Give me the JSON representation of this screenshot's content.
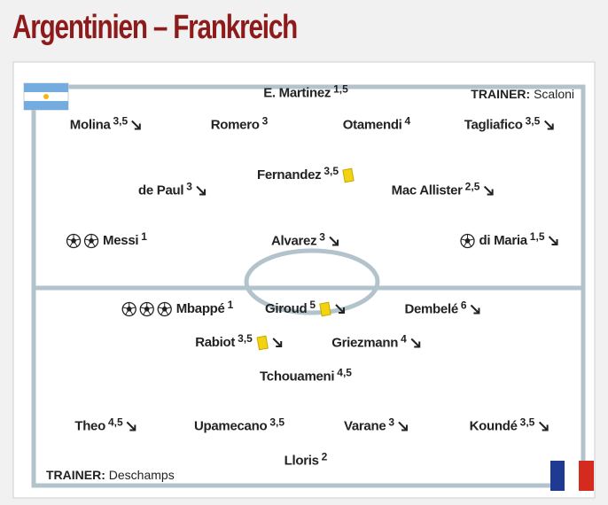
{
  "title": "Argentinien – Frankreich",
  "teams": [
    {
      "trainer": {
        "label": "TRAINER:",
        "name": "Scaloni"
      },
      "players": [
        {
          "name": "E. Martinez",
          "grade": "1,5"
        },
        {
          "name": "Molina",
          "grade": "3,5",
          "substituted": true
        },
        {
          "name": "Romero",
          "grade": "3"
        },
        {
          "name": "Otamendi",
          "grade": "4"
        },
        {
          "name": "Tagliafico",
          "grade": "3,5",
          "substituted": true
        },
        {
          "name": "Fernandez",
          "grade": "3,5",
          "yellow_card": true
        },
        {
          "name": "de Paul",
          "grade": "3",
          "substituted": true
        },
        {
          "name": "Mac Allister",
          "grade": "2,5",
          "substituted": true
        },
        {
          "name": "Messi",
          "grade": "1",
          "goals": 2
        },
        {
          "name": "Alvarez",
          "grade": "3",
          "substituted": true
        },
        {
          "name": "di Maria",
          "grade": "1,5",
          "goals": 1,
          "substituted": true
        }
      ]
    },
    {
      "trainer": {
        "label": "TRAINER:",
        "name": "Deschamps"
      },
      "players": [
        {
          "name": "Mbappé",
          "grade": "1",
          "goals": 3
        },
        {
          "name": "Giroud",
          "grade": "5",
          "yellow_card": true,
          "substituted": true
        },
        {
          "name": "Dembelé",
          "grade": "6",
          "substituted": true
        },
        {
          "name": "Rabiot",
          "grade": "3,5",
          "yellow_card": true,
          "substituted": true
        },
        {
          "name": "Griezmann",
          "grade": "4",
          "substituted": true
        },
        {
          "name": "Tchouameni",
          "grade": "4,5"
        },
        {
          "name": "Theo",
          "grade": "4,5",
          "substituted": true
        },
        {
          "name": "Upamecano",
          "grade": "3,5"
        },
        {
          "name": "Varane",
          "grade": "3",
          "substituted": true
        },
        {
          "name": "Koundé",
          "grade": "3,5",
          "substituted": true
        },
        {
          "name": "Lloris",
          "grade": "2"
        }
      ]
    }
  ]
}
